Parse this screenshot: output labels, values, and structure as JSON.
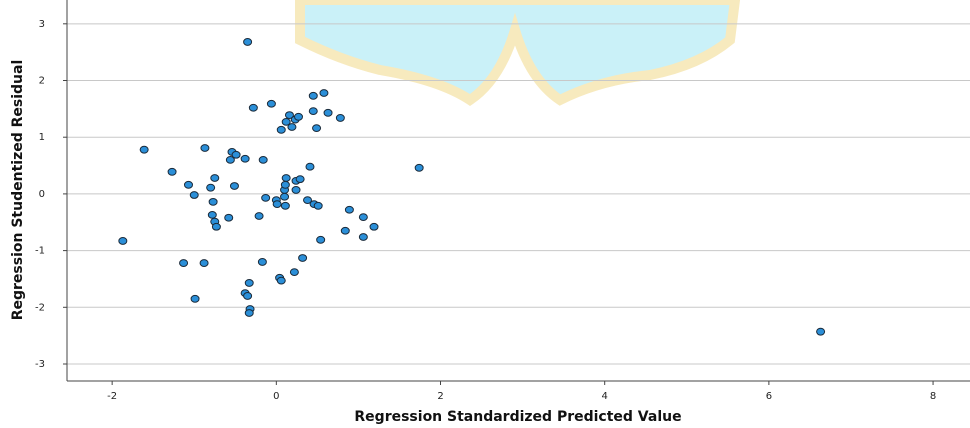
{
  "chart_data": {
    "type": "scatter",
    "x_label": "Regression Standardized Predicted Value",
    "y_label": "Regression Studentized Residual",
    "xlim": [
      -2.55,
      8.45
    ],
    "ylim": [
      -3.3,
      3.42
    ],
    "xticks": [
      -2,
      0,
      2,
      4,
      6,
      8
    ],
    "yticks": [
      -3,
      -2,
      -1,
      0,
      1,
      2,
      3
    ],
    "grid": true,
    "color": "#2b8fd8",
    "x": [
      -1.87,
      -1.61,
      -1.27,
      -1.13,
      -1.07,
      -1.0,
      -0.99,
      -0.88,
      -0.87,
      -0.8,
      -0.75,
      -0.77,
      -0.78,
      -0.75,
      -0.73,
      -0.58,
      -0.56,
      -0.54,
      -0.51,
      -0.49,
      -0.38,
      -0.35,
      -0.38,
      -0.35,
      -0.33,
      -0.32,
      -0.33,
      -0.28,
      -0.21,
      -0.17,
      -0.16,
      -0.13,
      -0.06,
      0.0,
      0.01,
      0.04,
      0.06,
      0.06,
      0.1,
      0.1,
      0.11,
      0.12,
      0.11,
      0.12,
      0.16,
      0.19,
      0.22,
      0.23,
      0.24,
      0.24,
      0.27,
      0.29,
      0.32,
      0.38,
      0.41,
      0.45,
      0.45,
      0.46,
      0.49,
      0.51,
      0.54,
      0.58,
      0.63,
      0.78,
      0.84,
      0.89,
      1.06,
      1.06,
      1.19,
      1.74,
      6.63
    ],
    "y": [
      -0.83,
      0.78,
      0.39,
      -1.22,
      0.16,
      -0.02,
      -1.85,
      -1.22,
      0.81,
      0.11,
      0.28,
      -0.14,
      -0.37,
      -0.49,
      -0.58,
      -0.42,
      0.6,
      0.74,
      0.14,
      0.69,
      0.62,
      2.68,
      -1.75,
      -1.8,
      -1.57,
      -2.03,
      -2.1,
      1.52,
      -0.39,
      -1.2,
      0.6,
      -0.07,
      1.59,
      -0.11,
      -0.18,
      -1.48,
      -1.53,
      1.13,
      0.07,
      -0.05,
      -0.21,
      0.28,
      0.16,
      1.27,
      1.39,
      1.18,
      -1.38,
      1.31,
      0.23,
      0.07,
      1.36,
      0.26,
      -1.13,
      -0.11,
      0.48,
      1.73,
      1.46,
      -0.18,
      1.16,
      -0.21,
      -0.81,
      1.78,
      1.43,
      1.34,
      -0.65,
      -0.28,
      -0.41,
      -0.76,
      -0.58,
      0.46,
      -2.43
    ]
  }
}
